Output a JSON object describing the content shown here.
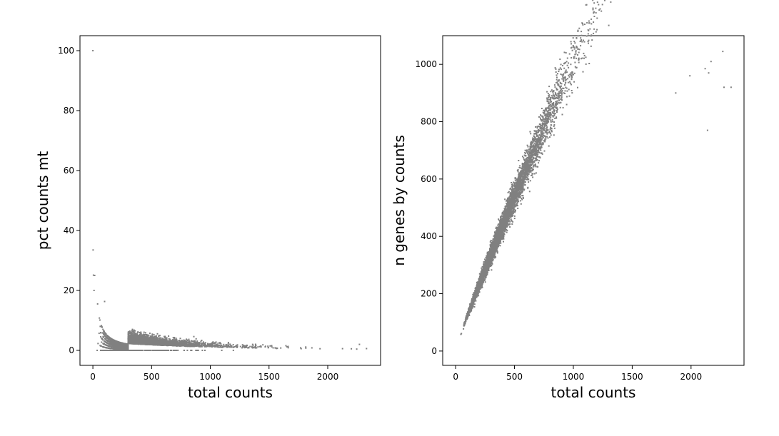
{
  "colors": {
    "points": "#808080",
    "axes": "#000000",
    "background": "#ffffff"
  },
  "chart_data": [
    {
      "type": "scatter",
      "xlabel": "total counts",
      "ylabel": "pct counts mt",
      "xlim": [
        -110,
        2450
      ],
      "ylim": [
        -5,
        105
      ],
      "xticks": [
        0,
        500,
        1000,
        1500,
        2000
      ],
      "yticks": [
        0,
        20,
        40,
        60,
        80,
        100
      ],
      "grid": false,
      "highlight_points": [
        {
          "x": 0,
          "y": 100
        },
        {
          "x": 2,
          "y": 33.5
        },
        {
          "x": 5,
          "y": 25.1
        },
        {
          "x": 15,
          "y": 25.0
        },
        {
          "x": 10,
          "y": 20.0
        },
        {
          "x": 40,
          "y": 15.5
        },
        {
          "x": 100,
          "y": 16.3
        },
        {
          "x": 860,
          "y": 4.6
        },
        {
          "x": 2270,
          "y": 2.0
        },
        {
          "x": 2330,
          "y": 0.6
        }
      ]
    },
    {
      "type": "scatter",
      "xlabel": "total counts",
      "ylabel": "n genes by counts",
      "xlim": [
        -110,
        2450
      ],
      "ylim": [
        -50,
        1100
      ],
      "xticks": [
        0,
        500,
        1000,
        1500,
        2000
      ],
      "yticks": [
        0,
        200,
        400,
        600,
        800,
        1000
      ],
      "grid": false,
      "highlight_points": [
        {
          "x": 2270,
          "y": 1045
        },
        {
          "x": 2170,
          "y": 1010
        },
        {
          "x": 2150,
          "y": 970
        },
        {
          "x": 1990,
          "y": 960
        },
        {
          "x": 2120,
          "y": 985
        },
        {
          "x": 2340,
          "y": 920
        },
        {
          "x": 2280,
          "y": 920
        },
        {
          "x": 2140,
          "y": 770
        },
        {
          "x": 1870,
          "y": 900
        }
      ]
    }
  ]
}
